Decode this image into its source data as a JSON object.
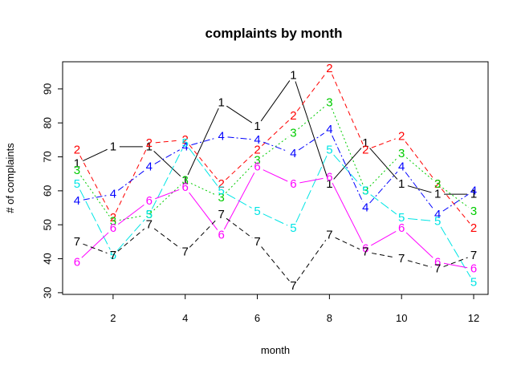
{
  "chart_data": {
    "type": "line",
    "title": "complaints by month",
    "xlabel": "month",
    "ylabel": "# of complaints",
    "xlim": [
      0.6,
      12.4
    ],
    "ylim": [
      29.5,
      98
    ],
    "x_ticks": [
      2,
      4,
      6,
      8,
      10,
      12
    ],
    "y_ticks": [
      30,
      40,
      50,
      60,
      70,
      80,
      90
    ],
    "grid": false,
    "legend": "none",
    "x": [
      1,
      2,
      3,
      4,
      5,
      6,
      7,
      8,
      9,
      10,
      11,
      12
    ],
    "series": [
      {
        "symbol": "1",
        "color": "#000000",
        "dash": "solid",
        "values": [
          68,
          73,
          73,
          63,
          86,
          79,
          94,
          62,
          74,
          62,
          59,
          59
        ]
      },
      {
        "symbol": "2",
        "color": "#ff0000",
        "dash": "6,4",
        "values": [
          72,
          52,
          74,
          75,
          62,
          72,
          82,
          96,
          72,
          76,
          62,
          49
        ]
      },
      {
        "symbol": "3",
        "color": "#00cc00",
        "dash": "2,3",
        "values": [
          66,
          51,
          53,
          63,
          58,
          69,
          77,
          86,
          60,
          71,
          62,
          54
        ]
      },
      {
        "symbol": "4",
        "color": "#0000ff",
        "dash": "8,3,2,3",
        "values": [
          57,
          59,
          67,
          73,
          76,
          75,
          71,
          78,
          55,
          67,
          53,
          60
        ]
      },
      {
        "symbol": "5",
        "color": "#00e5e5",
        "dash": "12,4",
        "values": [
          62,
          41,
          53,
          74,
          60,
          54,
          49,
          72,
          60,
          52,
          51,
          33
        ]
      },
      {
        "symbol": "6",
        "color": "#ff00ff",
        "dash": "solid",
        "values": [
          39,
          49,
          57,
          61,
          47,
          67,
          62,
          64,
          43,
          49,
          39,
          37
        ]
      },
      {
        "symbol": "7",
        "color": "#000000",
        "dash": "6,4",
        "values": [
          45,
          41,
          50,
          42,
          53,
          45,
          32,
          47,
          42,
          40,
          37,
          41
        ]
      }
    ]
  }
}
